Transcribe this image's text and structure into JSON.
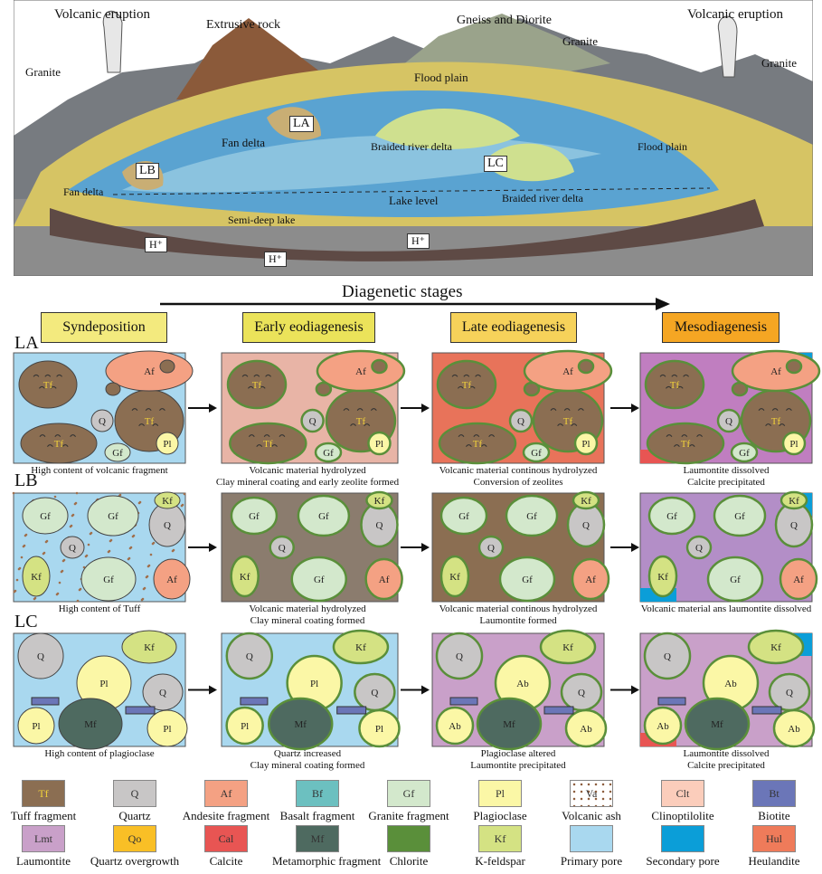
{
  "landscape": {
    "labels": [
      {
        "id": "volcanic-eruption-left",
        "text": "Volcanic eruption"
      },
      {
        "id": "extrusive-rock",
        "text": "Extrusive rock"
      },
      {
        "id": "gneiss-diorite",
        "text": "Gneiss and Diorite"
      },
      {
        "id": "volcanic-eruption-right",
        "text": "Volcanic eruption"
      },
      {
        "id": "granite-center",
        "text": "Granite"
      },
      {
        "id": "granite-right",
        "text": "Granite"
      },
      {
        "id": "granite-left",
        "text": "Granite"
      },
      {
        "id": "flood-plain-top",
        "text": "Flood plain"
      },
      {
        "id": "fan-delta-top",
        "text": "Fan delta"
      },
      {
        "id": "braided-river-delta-top",
        "text": "Braided river delta"
      },
      {
        "id": "flood-plain-right",
        "text": "Flood plain"
      },
      {
        "id": "lake-level",
        "text": "Lake level"
      },
      {
        "id": "braided-river-delta-bottom",
        "text": "Braided river delta"
      },
      {
        "id": "fan-delta-bottom",
        "text": "Fan delta"
      },
      {
        "id": "semi-deep-lake",
        "text": "Semi-deep lake"
      }
    ],
    "boxes": [
      "LA",
      "LB",
      "LC"
    ],
    "hplus": "H⁺"
  },
  "stages_title": "Diagenetic stages",
  "stages": [
    {
      "label": "Syndeposition",
      "color": "#f3ea7e"
    },
    {
      "label": "Early eodiagenesis",
      "color": "#ebe35a"
    },
    {
      "label": "Late eodiagenesis",
      "color": "#f6d25a"
    },
    {
      "label": "Mesodiagenesis",
      "color": "#f5a623"
    }
  ],
  "rows": [
    {
      "label": "LA",
      "captions": [
        "High content of volcanic fragment",
        "Volcanic material hydrolyzed\nClay mineral coating and early zeolite formed",
        "Volcanic material continous hydrolyzed\nConversion of zeolites",
        "Laumontite dissolved\nCalcite precipitated"
      ]
    },
    {
      "label": "LB",
      "captions": [
        "High content of Tuff",
        "Volcanic material hydrolyzed\nClay mineral coating formed",
        "Volcanic material continous hydrolyzed\nLaumontite formed",
        "Volcanic material ans laumontite dissolved"
      ]
    },
    {
      "label": "LC",
      "captions": [
        "High content of plagioclase",
        "Quartz increased\nClay mineral coating formed",
        "Plagioclase altered\nLaumontite precipitated",
        "Laumontite dissolved\nCalcite precipitated"
      ]
    }
  ],
  "legend": [
    {
      "abbr": "Tf",
      "name": "Tuff fragment",
      "color": "#8b6e52"
    },
    {
      "abbr": "Q",
      "name": "Quartz",
      "color": "#c8c6c6"
    },
    {
      "abbr": "Af",
      "name": "Andesite fragment",
      "color": "#f4a183"
    },
    {
      "abbr": "Bf",
      "name": "Basalt fragment",
      "color": "#6cc0c0"
    },
    {
      "abbr": "Gf",
      "name": "Granite fragment",
      "color": "#d3e8cc"
    },
    {
      "abbr": "Pl",
      "name": "Plagioclase",
      "color": "#fbf7a6"
    },
    {
      "abbr": "Va",
      "name": "Volcanic ash",
      "color": "#ffffff"
    },
    {
      "abbr": "Clt",
      "name": "Clinoptilolite",
      "color": "#fbcdbb"
    },
    {
      "abbr": "Bt",
      "name": "Biotite",
      "color": "#6b76b8"
    },
    {
      "abbr": "Lmt",
      "name": "Laumontite",
      "color": "#c9a0c9"
    },
    {
      "abbr": "Qo",
      "name": "Quartz overgrowth",
      "color": "#f9bf26"
    },
    {
      "abbr": "Cal",
      "name": "Calcite",
      "color": "#e85553"
    },
    {
      "abbr": "Mf",
      "name": "Metamorphic fragment",
      "color": "#4e6a60"
    },
    {
      "abbr": "",
      "name": "Chlorite",
      "color": "#5a8f3a"
    },
    {
      "abbr": "Kf",
      "name": "K-feldspar",
      "color": "#d4e283"
    },
    {
      "abbr": "",
      "name": "Primary pore",
      "color": "#a9d8ef"
    },
    {
      "abbr": "",
      "name": "Secondary pore",
      "color": "#0b9ed8"
    },
    {
      "abbr": "Hul",
      "name": "Heulandite",
      "color": "#ef7b5a"
    }
  ]
}
